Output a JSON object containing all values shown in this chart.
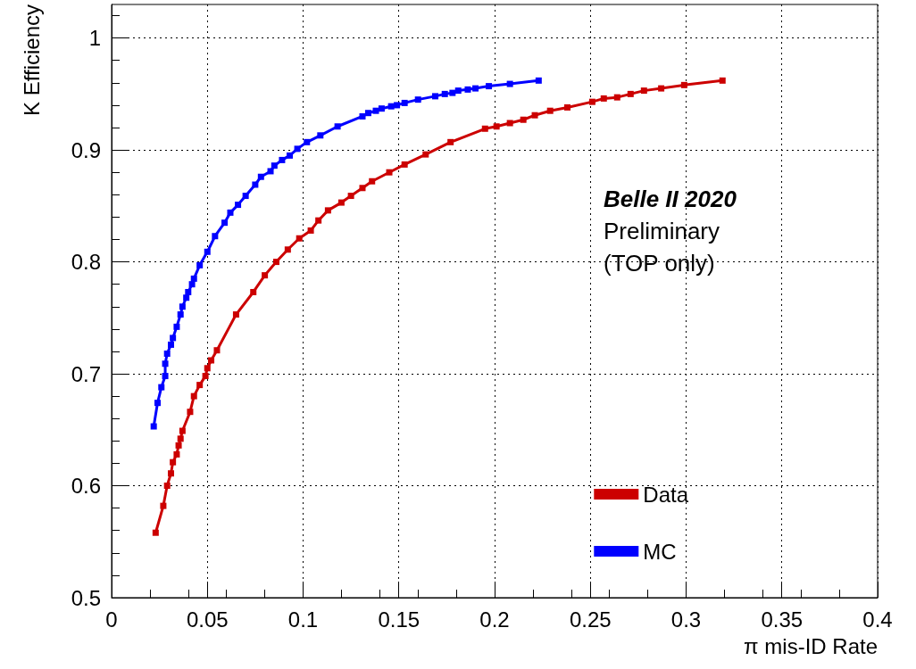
{
  "chart_data": {
    "type": "line",
    "xlabel": "π mis-ID Rate",
    "ylabel": "K Efficiency",
    "xlim": [
      0,
      0.4
    ],
    "xticks": [
      0,
      0.05,
      0.1,
      0.15,
      0.2,
      0.25,
      0.3,
      0.35,
      0.4
    ],
    "ylim": [
      0.5,
      1.03
    ],
    "yticks": [
      0.5,
      0.6,
      0.7,
      0.8,
      0.9,
      1
    ],
    "grid": true,
    "legend": "bottom right",
    "marker": "square",
    "line_style": "solid",
    "annotations": [
      "Belle II 2020",
      "Preliminary",
      "(TOP only)"
    ],
    "series": [
      {
        "name": "Data",
        "color": "#cc0000",
        "x": [
          0.023,
          0.027,
          0.029,
          0.031,
          0.032,
          0.034,
          0.035,
          0.036,
          0.037,
          0.041,
          0.043,
          0.046,
          0.049,
          0.05,
          0.052,
          0.055,
          0.065,
          0.074,
          0.08,
          0.086,
          0.092,
          0.098,
          0.104,
          0.108,
          0.113,
          0.12,
          0.125,
          0.131,
          0.136,
          0.145,
          0.153,
          0.164,
          0.177,
          0.195,
          0.201,
          0.208,
          0.215,
          0.221,
          0.229,
          0.238,
          0.251,
          0.257,
          0.264,
          0.271,
          0.278,
          0.287,
          0.299,
          0.319
        ],
        "values": [
          0.558,
          0.582,
          0.6,
          0.611,
          0.621,
          0.628,
          0.636,
          0.642,
          0.649,
          0.666,
          0.68,
          0.69,
          0.698,
          0.705,
          0.712,
          0.721,
          0.753,
          0.773,
          0.788,
          0.8,
          0.811,
          0.821,
          0.828,
          0.837,
          0.846,
          0.853,
          0.859,
          0.866,
          0.872,
          0.88,
          0.887,
          0.896,
          0.907,
          0.919,
          0.921,
          0.924,
          0.927,
          0.931,
          0.935,
          0.938,
          0.943,
          0.946,
          0.947,
          0.95,
          0.953,
          0.955,
          0.958,
          0.962
        ]
      },
      {
        "name": "MC",
        "color": "#0000ff",
        "x": [
          0.022,
          0.024,
          0.026,
          0.028,
          0.028,
          0.029,
          0.031,
          0.032,
          0.034,
          0.036,
          0.037,
          0.039,
          0.04,
          0.042,
          0.043,
          0.046,
          0.05,
          0.054,
          0.059,
          0.062,
          0.066,
          0.07,
          0.075,
          0.078,
          0.083,
          0.085,
          0.089,
          0.093,
          0.097,
          0.102,
          0.109,
          0.118,
          0.131,
          0.134,
          0.138,
          0.141,
          0.146,
          0.149,
          0.153,
          0.16,
          0.169,
          0.174,
          0.178,
          0.181,
          0.186,
          0.19,
          0.197,
          0.208,
          0.223
        ],
        "values": [
          0.653,
          0.674,
          0.688,
          0.698,
          0.709,
          0.718,
          0.726,
          0.732,
          0.742,
          0.753,
          0.76,
          0.768,
          0.773,
          0.78,
          0.785,
          0.797,
          0.809,
          0.823,
          0.835,
          0.844,
          0.851,
          0.859,
          0.869,
          0.876,
          0.881,
          0.886,
          0.891,
          0.895,
          0.901,
          0.907,
          0.913,
          0.921,
          0.93,
          0.933,
          0.935,
          0.937,
          0.939,
          0.94,
          0.942,
          0.945,
          0.948,
          0.95,
          0.951,
          0.953,
          0.954,
          0.955,
          0.957,
          0.959,
          0.962
        ]
      }
    ]
  }
}
